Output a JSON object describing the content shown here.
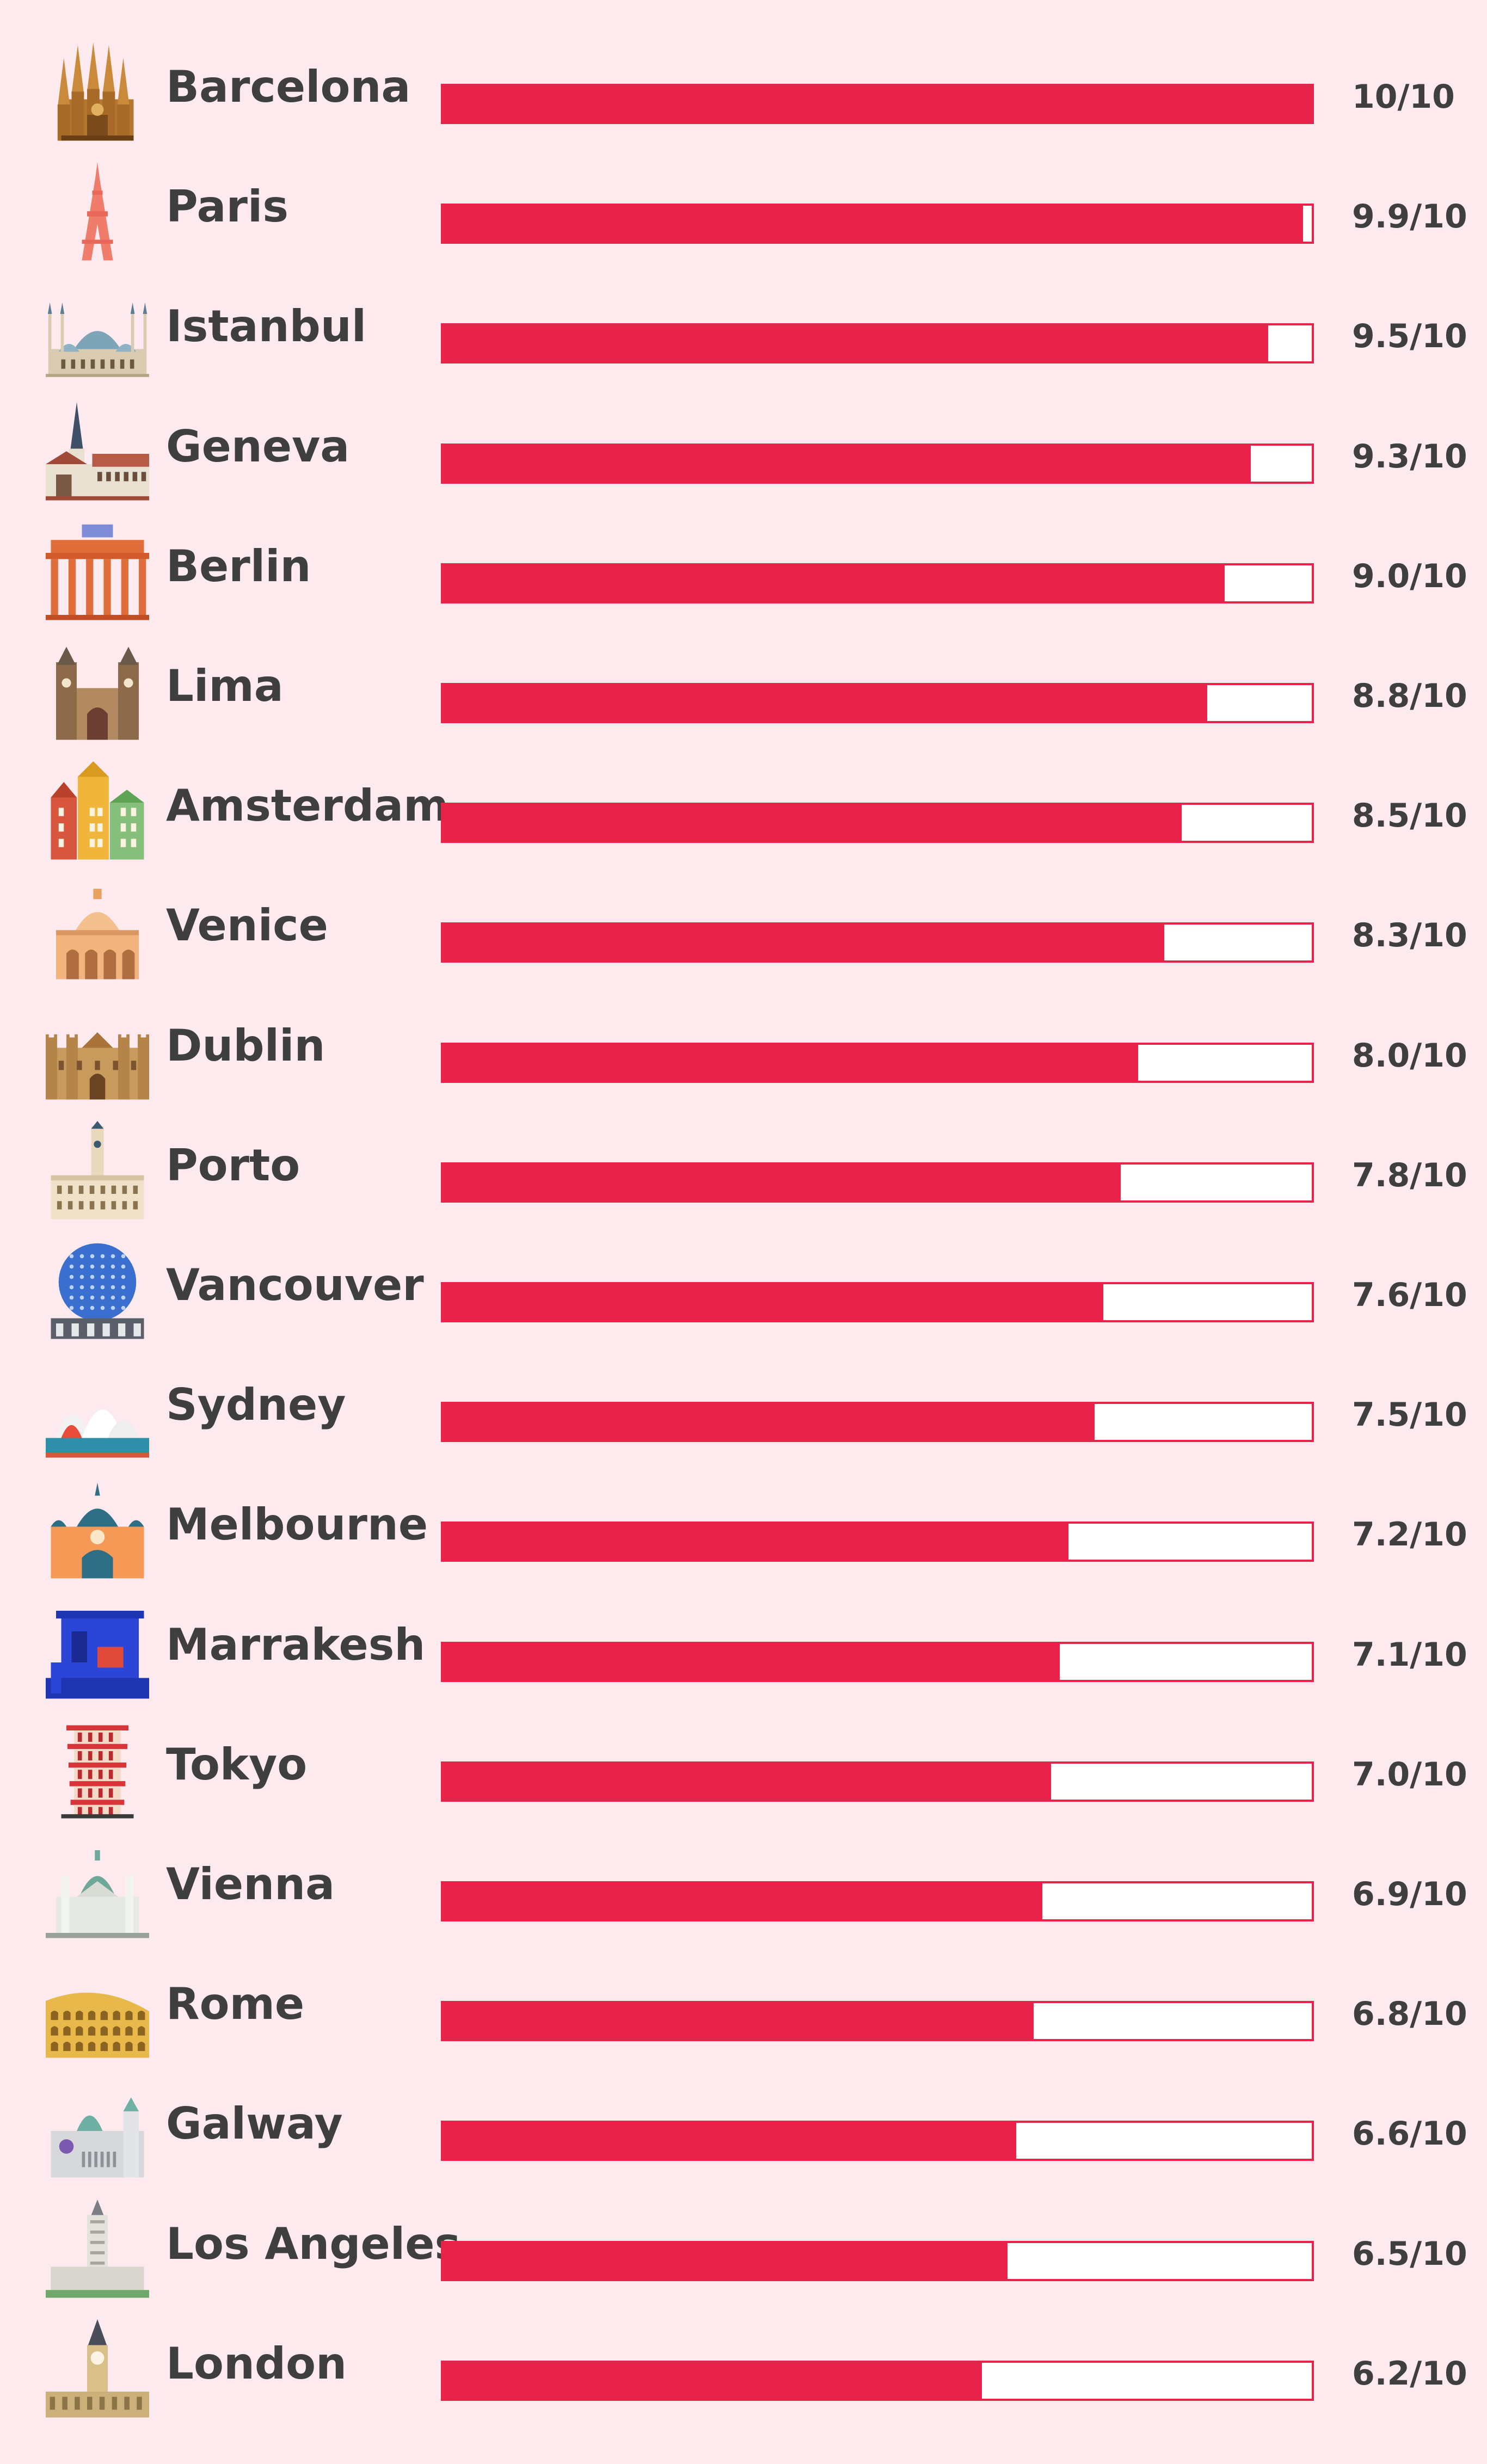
{
  "chart_data": {
    "type": "bar",
    "orientation": "horizontal",
    "title": "",
    "xlabel": "",
    "ylabel": "",
    "xlim": [
      0,
      10
    ],
    "grid": false,
    "colors": {
      "bar": "#e8234a",
      "track": "#ffffff",
      "background": "#fdeaee",
      "text": "#3f3f3f"
    },
    "categories": [
      "Barcelona",
      "Paris",
      "Istanbul",
      "Geneva",
      "Berlin",
      "Lima",
      "Amsterdam",
      "Venice",
      "Dublin",
      "Porto",
      "Vancouver",
      "Sydney",
      "Melbourne",
      "Marrakesh",
      "Tokyo",
      "Vienna",
      "Rome",
      "Galway",
      "Los Angeles",
      "London"
    ],
    "values": [
      10,
      9.9,
      9.5,
      9.3,
      9.0,
      8.8,
      8.5,
      8.3,
      8.0,
      7.8,
      7.6,
      7.5,
      7.2,
      7.1,
      7.0,
      6.9,
      6.8,
      6.6,
      6.5,
      6.2
    ],
    "value_labels": [
      "10/10",
      "9.9/10",
      "9.5/10",
      "9.3/10",
      "9.0/10",
      "8.8/10",
      "8.5/10",
      "8.3/10",
      "8.0/10",
      "7.8/10",
      "7.6/10",
      "7.5/10",
      "7.2/10",
      "7.1/10",
      "7.0/10",
      "6.9/10",
      "6.8/10",
      "6.6/10",
      "6.5/10",
      "6.2/10"
    ],
    "icons": [
      "sagrada-familia-icon",
      "eiffel-tower-icon",
      "blue-mosque-icon",
      "geneva-cathedral-icon",
      "brandenburg-gate-icon",
      "lima-cathedral-icon",
      "amsterdam-canal-houses-icon",
      "venice-basilica-icon",
      "dublin-castle-icon",
      "porto-city-hall-icon",
      "science-world-dome-icon",
      "sydney-opera-house-icon",
      "flinders-street-station-icon",
      "majorelle-garden-icon",
      "pagoda-icon",
      "karlskirche-icon",
      "colosseum-icon",
      "galway-cathedral-icon",
      "los-angeles-city-hall-icon",
      "big-ben-icon"
    ]
  }
}
